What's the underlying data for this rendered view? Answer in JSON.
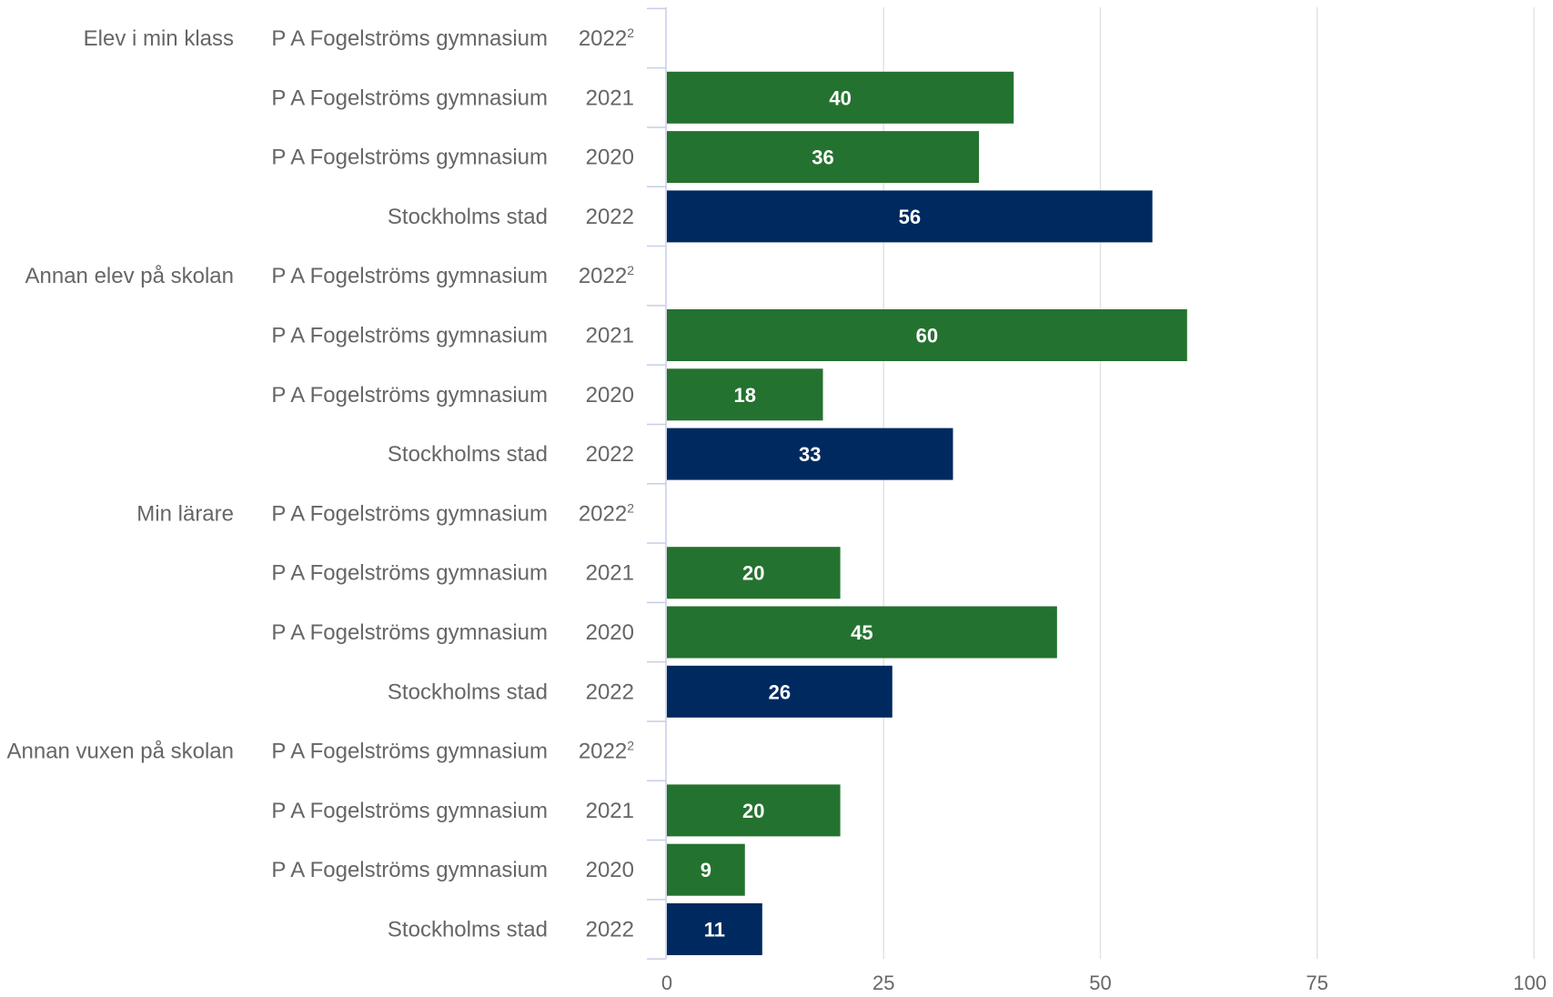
{
  "chart_data": {
    "type": "bar",
    "orientation": "horizontal",
    "xlim": [
      0,
      100
    ],
    "x_ticks": [
      "0",
      "25",
      "50",
      "75",
      "100"
    ],
    "grid": true,
    "colors": {
      "school": "#24722f",
      "city": "#002a5f"
    },
    "groups": [
      {
        "label": "Elev i min klass",
        "rows": [
          {
            "entity": "P A Fogelströms gymnasium",
            "year": "2022",
            "note": "2",
            "value": null,
            "kind": "school"
          },
          {
            "entity": "P A Fogelströms gymnasium",
            "year": "2021",
            "value": 40,
            "kind": "school"
          },
          {
            "entity": "P A Fogelströms gymnasium",
            "year": "2020",
            "value": 36,
            "kind": "school"
          },
          {
            "entity": "Stockholms stad",
            "year": "2022",
            "value": 56,
            "kind": "city"
          }
        ]
      },
      {
        "label": "Annan elev på skolan",
        "rows": [
          {
            "entity": "P A Fogelströms gymnasium",
            "year": "2022",
            "note": "2",
            "value": null,
            "kind": "school"
          },
          {
            "entity": "P A Fogelströms gymnasium",
            "year": "2021",
            "value": 60,
            "kind": "school"
          },
          {
            "entity": "P A Fogelströms gymnasium",
            "year": "2020",
            "value": 18,
            "kind": "school"
          },
          {
            "entity": "Stockholms stad",
            "year": "2022",
            "value": 33,
            "kind": "city"
          }
        ]
      },
      {
        "label": "Min lärare",
        "rows": [
          {
            "entity": "P A Fogelströms gymnasium",
            "year": "2022",
            "note": "2",
            "value": null,
            "kind": "school"
          },
          {
            "entity": "P A Fogelströms gymnasium",
            "year": "2021",
            "value": 20,
            "kind": "school"
          },
          {
            "entity": "P A Fogelströms gymnasium",
            "year": "2020",
            "value": 45,
            "kind": "school"
          },
          {
            "entity": "Stockholms stad",
            "year": "2022",
            "value": 26,
            "kind": "city"
          }
        ]
      },
      {
        "label": "Annan vuxen på skolan",
        "rows": [
          {
            "entity": "P A Fogelströms gymnasium",
            "year": "2022",
            "note": "2",
            "value": null,
            "kind": "school"
          },
          {
            "entity": "P A Fogelströms gymnasium",
            "year": "2021",
            "value": 20,
            "kind": "school"
          },
          {
            "entity": "P A Fogelströms gymnasium",
            "year": "2020",
            "value": 9,
            "kind": "school"
          },
          {
            "entity": "Stockholms stad",
            "year": "2022",
            "value": 11,
            "kind": "city"
          }
        ]
      }
    ]
  }
}
